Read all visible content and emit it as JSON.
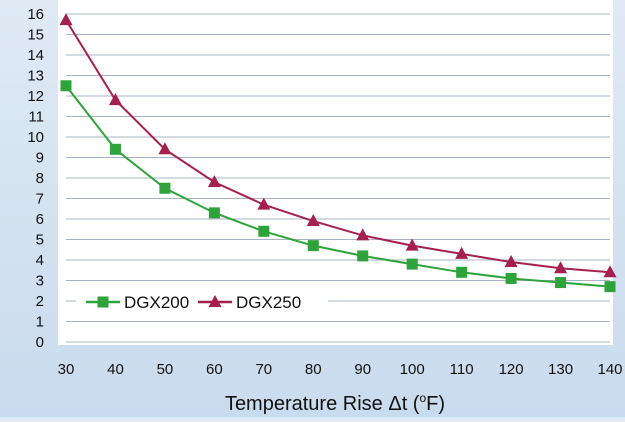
{
  "chart_data": {
    "type": "line",
    "x": [
      30,
      40,
      50,
      60,
      70,
      80,
      90,
      100,
      110,
      120,
      130,
      140
    ],
    "series": [
      {
        "name": "DGX200",
        "values": [
          12.5,
          9.4,
          7.5,
          6.3,
          5.4,
          4.7,
          4.2,
          3.8,
          3.4,
          3.1,
          2.9,
          2.7
        ],
        "color": "#2ea33a",
        "marker": "square"
      },
      {
        "name": "DGX250",
        "values": [
          15.7,
          11.8,
          9.4,
          7.8,
          6.7,
          5.9,
          5.2,
          4.7,
          4.3,
          3.9,
          3.6,
          3.4
        ],
        "color": "#a6204f",
        "marker": "triangle"
      }
    ],
    "xlabel": "Temperature Rise Δt (°F)",
    "ylabel": "",
    "xlim": [
      30,
      140
    ],
    "ylim": [
      0,
      16
    ],
    "y_ticks": [
      0,
      1,
      2,
      3,
      4,
      5,
      6,
      7,
      8,
      9,
      10,
      11,
      12,
      13,
      14,
      15,
      16
    ],
    "x_ticks": [
      30,
      40,
      50,
      60,
      70,
      80,
      90,
      100,
      110,
      120,
      130,
      140
    ],
    "grid": "horizontal",
    "legend_position": "bottom-left"
  },
  "xlabel_parts": {
    "pre": "Temperature Rise Δt (",
    "sup": "o",
    "post": "F)"
  }
}
